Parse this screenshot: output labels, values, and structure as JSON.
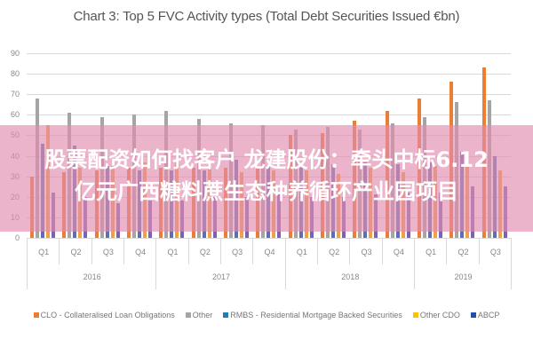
{
  "chart_data": {
    "type": "bar",
    "title": "Chart 3: Top 5 FVC Activity types (Total Debt Securities Issued €bn)",
    "xlabel": "",
    "ylabel": "",
    "ylim": [
      0,
      90
    ],
    "yticks": [
      0,
      10,
      20,
      30,
      40,
      50,
      60,
      70,
      80,
      90
    ],
    "grid": true,
    "legend_position": "bottom",
    "categories": [
      "2016 Q1",
      "2016 Q2",
      "2016 Q3",
      "2016 Q4",
      "2017 Q1",
      "2017 Q2",
      "2017 Q3",
      "2017 Q4",
      "2018 Q1",
      "2018 Q2",
      "2018 Q3",
      "2018 Q4",
      "2019 Q1",
      "2019 Q2",
      "2019 Q3"
    ],
    "quarter_labels": [
      "Q1",
      "Q2",
      "Q3",
      "Q4",
      "Q1",
      "Q2",
      "Q3",
      "Q4",
      "Q1",
      "Q2",
      "Q3",
      "Q4",
      "Q1",
      "Q2",
      "Q3"
    ],
    "year_groups": [
      {
        "label": "2016",
        "span": 4
      },
      {
        "label": "2017",
        "span": 4
      },
      {
        "label": "2018",
        "span": 4
      },
      {
        "label": "2019",
        "span": 3
      }
    ],
    "series": [
      {
        "name": "CLO - Collateralised Loan Obligations",
        "color": "#ED7D31",
        "values": [
          30,
          32,
          33,
          34,
          34,
          34,
          34,
          34,
          50,
          51,
          57,
          62,
          68,
          76,
          83
        ]
      },
      {
        "name": "Other",
        "color": "#A5A5A5",
        "values": [
          68,
          61,
          59,
          60,
          62,
          58,
          56,
          55,
          53,
          54,
          53,
          56,
          59,
          66,
          67
        ]
      },
      {
        "name": "RMBS - Residential Mortgage Backed Securities",
        "color": "#5B6FB5",
        "values": [
          46,
          45,
          35,
          33,
          33,
          33,
          38,
          35,
          36,
          36,
          37,
          36,
          37,
          42,
          40
        ]
      },
      {
        "name": "Other CDO",
        "color": "#F4A03C",
        "values": [
          55,
          34,
          35,
          37,
          37,
          34,
          32,
          33,
          33,
          31,
          34,
          32,
          35,
          35,
          33
        ]
      },
      {
        "name": "ABCP",
        "color": "#7B62B5",
        "values": [
          22,
          20,
          17,
          18,
          18,
          20,
          20,
          21,
          20,
          20,
          21,
          22,
          22,
          25,
          25
        ]
      }
    ],
    "legend_swatch_colors": [
      "#ED7D31",
      "#A5A5A5",
      "#1F7FB4",
      "#FFC000",
      "#1F4FB4"
    ]
  },
  "overlay": {
    "line1": "股票配资如何找客户 龙建股份：牵头中标6.12",
    "line2": "亿元广西糖料蔗生态种养循环产业园项目"
  }
}
